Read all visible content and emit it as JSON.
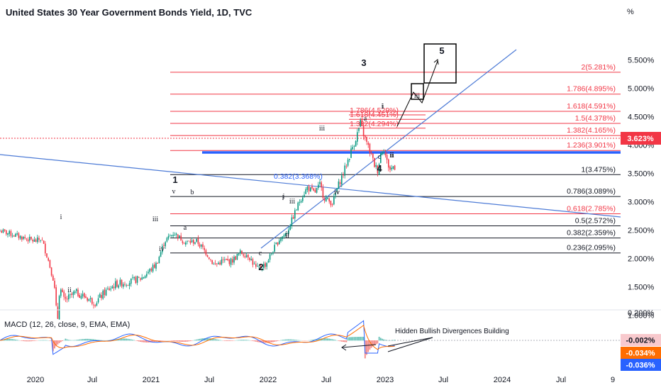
{
  "title": "United States 30 Year Government Bonds Yield, 1D, TVC",
  "chart_data": {
    "type": "candlestick",
    "y_unit": "%",
    "y_ticks": [
      "5.500%",
      "5.000%",
      "4.500%",
      "4.000%",
      "3.500%",
      "3.000%",
      "2.500%",
      "2.000%",
      "1.500%",
      "1.000%"
    ],
    "x_ticks": [
      "2020",
      "Jul",
      "2021",
      "Jul",
      "2022",
      "Jul",
      "2023",
      "Jul",
      "2024",
      "Jul",
      "9"
    ],
    "price_path": [
      [
        2020.0,
        2.3
      ],
      [
        2020.05,
        2.35
      ],
      [
        2020.1,
        2.05
      ],
      [
        2020.16,
        1.6
      ],
      [
        2020.19,
        0.85
      ],
      [
        2020.21,
        1.5
      ],
      [
        2020.25,
        1.25
      ],
      [
        2020.35,
        1.4
      ],
      [
        2020.45,
        1.3
      ],
      [
        2020.52,
        1.22
      ],
      [
        2020.6,
        1.4
      ],
      [
        2020.7,
        1.55
      ],
      [
        2020.8,
        1.58
      ],
      [
        2020.92,
        1.65
      ],
      [
        2021.0,
        1.8
      ],
      [
        2021.05,
        1.9
      ],
      [
        2021.12,
        2.3
      ],
      [
        2021.2,
        2.45
      ],
      [
        2021.3,
        2.28
      ],
      [
        2021.4,
        2.3
      ],
      [
        2021.5,
        2.05
      ],
      [
        2021.55,
        1.88
      ],
      [
        2021.62,
        1.95
      ],
      [
        2021.7,
        1.95
      ],
      [
        2021.78,
        2.1
      ],
      [
        2021.85,
        2.05
      ],
      [
        2021.92,
        1.8
      ],
      [
        2022.0,
        1.9
      ],
      [
        2022.05,
        2.1
      ],
      [
        2022.12,
        2.35
      ],
      [
        2022.18,
        2.45
      ],
      [
        2022.25,
        2.8
      ],
      [
        2022.3,
        3.05
      ],
      [
        2022.36,
        3.25
      ],
      [
        2022.42,
        3.15
      ],
      [
        2022.47,
        3.3
      ],
      [
        2022.5,
        3.08
      ],
      [
        2022.55,
        3.0
      ],
      [
        2022.58,
        2.98
      ],
      [
        2022.62,
        3.25
      ],
      [
        2022.68,
        3.55
      ],
      [
        2022.74,
        3.9
      ],
      [
        2022.79,
        4.18
      ],
      [
        2022.82,
        4.38
      ],
      [
        2022.86,
        4.1
      ],
      [
        2022.9,
        3.9
      ],
      [
        2022.94,
        3.65
      ],
      [
        2022.97,
        3.55
      ],
      [
        2023.0,
        3.9
      ],
      [
        2023.02,
        3.95
      ],
      [
        2023.05,
        3.7
      ],
      [
        2023.08,
        3.55
      ],
      [
        2023.1,
        3.62
      ]
    ],
    "last_price": "3.623%",
    "fib_levels_upper": [
      {
        "label": "2(5.281%)",
        "value": 5.281,
        "color": "#f23645"
      },
      {
        "label": "1.786(4.895%)",
        "value": 4.895,
        "color": "#f23645"
      },
      {
        "label": "1.618(4.591%)",
        "value": 4.591,
        "color": "#f23645"
      },
      {
        "label": "1.5(4.378%)",
        "value": 4.378,
        "color": "#f23645"
      },
      {
        "label": "1.382(4.165%)",
        "value": 4.165,
        "color": "#f23645"
      },
      {
        "label": "1.236(3.901%)",
        "value": 3.901,
        "color": "#f23645"
      },
      {
        "label": "1(3.475%)",
        "value": 3.475,
        "color": "#131722"
      },
      {
        "label": "0.786(3.089%)",
        "value": 3.089,
        "color": "#131722"
      },
      {
        "label": "0.618(2.785%)",
        "value": 2.785,
        "color": "#f23645"
      },
      {
        "label": "0.5(2.572%)",
        "value": 2.572,
        "color": "#131722"
      },
      {
        "label": "0.382(2.359%)",
        "value": 2.359,
        "color": "#131722"
      },
      {
        "label": "0.236(2.095%)",
        "value": 2.095,
        "color": "#131722"
      }
    ],
    "fib_levels_lower": [
      {
        "label": "1.786(4.529%)",
        "value": 4.529
      },
      {
        "label": "1.618(4.451%)",
        "value": 4.451
      },
      {
        "label": "1.382(4.294%)",
        "value": 4.294
      }
    ],
    "support_label": "0.382(3.368%)",
    "support_value": 3.368,
    "wave_labels_major": [
      "1",
      "2",
      "3",
      "4",
      "5"
    ],
    "wave_labels_minor": [
      "i",
      "ii",
      "iii",
      "iv",
      "v",
      "a",
      "b",
      "c",
      "i",
      "ii",
      "iii",
      "iv",
      "a",
      "c",
      "i",
      "ii",
      "iii",
      "i",
      "ii",
      "i",
      "ii",
      "iii",
      "iv"
    ],
    "macd": {
      "label": "MACD (12, 26, close, 9, EMA, EMA)",
      "y_ticks": [
        "0.200%"
      ],
      "badges": [
        {
          "value": "-0.002%",
          "color": "#f8c9cd",
          "text_color": "#131722"
        },
        {
          "value": "-0.034%",
          "color": "#ff6d00",
          "text_color": "#ffffff"
        },
        {
          "value": "-0.036%",
          "color": "#2962ff",
          "text_color": "#ffffff"
        }
      ],
      "annotation": "Hidden Bullish Divergences Building"
    }
  },
  "colors": {
    "up": "#089981",
    "down": "#f23645",
    "trendline": "#4d7bd6",
    "support": "#2962ff",
    "macd_line": "#2962ff",
    "signal_line": "#ff6d00"
  }
}
